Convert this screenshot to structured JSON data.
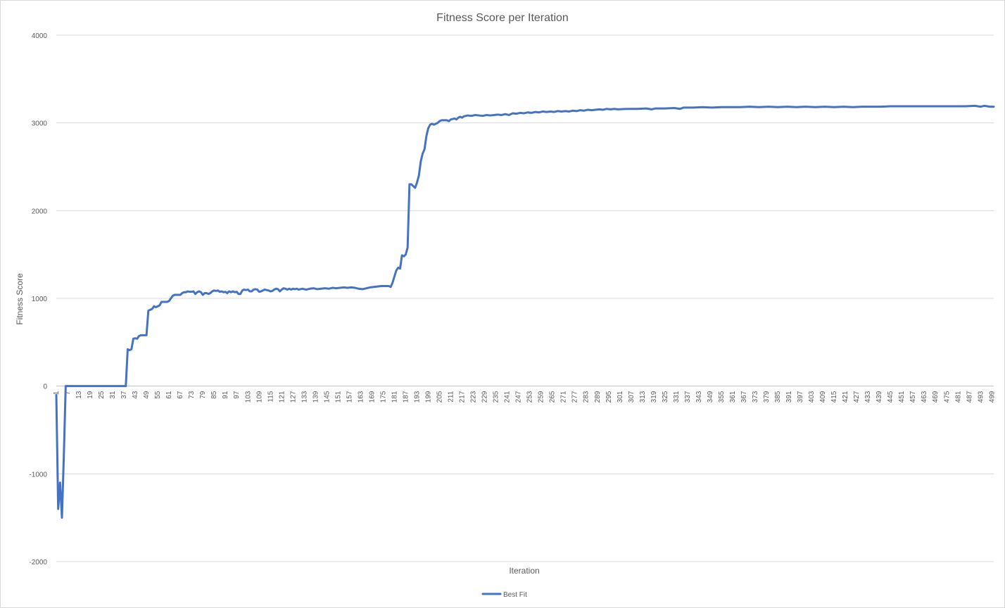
{
  "chart_data": {
    "type": "line",
    "title": "Fitness Score per Iteration",
    "xlabel": "Iteration",
    "ylabel": "Fitness Score",
    "ylim": [
      -2000,
      4000
    ],
    "yticks": [
      -2000,
      -1000,
      0,
      1000,
      2000,
      3000,
      4000
    ],
    "xlim": [
      1,
      500
    ],
    "xtick_start": 1,
    "xtick_step": 6,
    "grid": "horizontal",
    "legend_position": "bottom",
    "line_color": "#4472c4",
    "series": [
      {
        "name": "Best Fit",
        "color": "#4472c4",
        "points": [
          [
            1,
            -100
          ],
          [
            2,
            -1400
          ],
          [
            3,
            -1100
          ],
          [
            4,
            -1500
          ],
          [
            5,
            -800
          ],
          [
            6,
            0
          ],
          [
            7,
            0
          ],
          [
            10,
            0
          ],
          [
            20,
            0
          ],
          [
            30,
            0
          ],
          [
            38,
            0
          ],
          [
            39,
            420
          ],
          [
            40,
            410
          ],
          [
            41,
            420
          ],
          [
            42,
            540
          ],
          [
            43,
            545
          ],
          [
            44,
            540
          ],
          [
            45,
            570
          ],
          [
            46,
            580
          ],
          [
            48,
            580
          ],
          [
            49,
            580
          ],
          [
            50,
            860
          ],
          [
            51,
            870
          ],
          [
            52,
            880
          ],
          [
            53,
            910
          ],
          [
            54,
            900
          ],
          [
            55,
            910
          ],
          [
            56,
            920
          ],
          [
            57,
            960
          ],
          [
            58,
            960
          ],
          [
            60,
            960
          ],
          [
            61,
            970
          ],
          [
            62,
            1000
          ],
          [
            63,
            1030
          ],
          [
            64,
            1040
          ],
          [
            65,
            1040
          ],
          [
            66,
            1040
          ],
          [
            67,
            1040
          ],
          [
            68,
            1060
          ],
          [
            69,
            1070
          ],
          [
            70,
            1070
          ],
          [
            71,
            1080
          ],
          [
            72,
            1075
          ],
          [
            73,
            1075
          ],
          [
            74,
            1080
          ],
          [
            75,
            1050
          ],
          [
            76,
            1070
          ],
          [
            77,
            1080
          ],
          [
            78,
            1070
          ],
          [
            79,
            1040
          ],
          [
            80,
            1060
          ],
          [
            81,
            1060
          ],
          [
            82,
            1050
          ],
          [
            83,
            1060
          ],
          [
            84,
            1080
          ],
          [
            85,
            1090
          ],
          [
            86,
            1085
          ],
          [
            87,
            1090
          ],
          [
            88,
            1075
          ],
          [
            89,
            1080
          ],
          [
            90,
            1070
          ],
          [
            91,
            1075
          ],
          [
            92,
            1060
          ],
          [
            93,
            1080
          ],
          [
            94,
            1070
          ],
          [
            95,
            1080
          ],
          [
            96,
            1070
          ],
          [
            97,
            1075
          ],
          [
            98,
            1050
          ],
          [
            99,
            1050
          ],
          [
            100,
            1090
          ],
          [
            101,
            1100
          ],
          [
            102,
            1095
          ],
          [
            103,
            1100
          ],
          [
            104,
            1080
          ],
          [
            105,
            1080
          ],
          [
            106,
            1100
          ],
          [
            107,
            1105
          ],
          [
            108,
            1100
          ],
          [
            109,
            1075
          ],
          [
            110,
            1080
          ],
          [
            111,
            1090
          ],
          [
            112,
            1100
          ],
          [
            113,
            1095
          ],
          [
            114,
            1090
          ],
          [
            115,
            1080
          ],
          [
            116,
            1085
          ],
          [
            117,
            1100
          ],
          [
            118,
            1110
          ],
          [
            119,
            1105
          ],
          [
            120,
            1080
          ],
          [
            121,
            1100
          ],
          [
            122,
            1115
          ],
          [
            123,
            1110
          ],
          [
            124,
            1100
          ],
          [
            125,
            1110
          ],
          [
            126,
            1100
          ],
          [
            127,
            1110
          ],
          [
            128,
            1105
          ],
          [
            129,
            1110
          ],
          [
            130,
            1100
          ],
          [
            132,
            1110
          ],
          [
            134,
            1100
          ],
          [
            136,
            1110
          ],
          [
            138,
            1115
          ],
          [
            140,
            1105
          ],
          [
            142,
            1110
          ],
          [
            144,
            1115
          ],
          [
            146,
            1110
          ],
          [
            148,
            1120
          ],
          [
            150,
            1115
          ],
          [
            152,
            1120
          ],
          [
            154,
            1125
          ],
          [
            156,
            1120
          ],
          [
            158,
            1125
          ],
          [
            160,
            1120
          ],
          [
            162,
            1110
          ],
          [
            164,
            1105
          ],
          [
            166,
            1115
          ],
          [
            168,
            1125
          ],
          [
            170,
            1130
          ],
          [
            172,
            1135
          ],
          [
            174,
            1140
          ],
          [
            176,
            1140
          ],
          [
            178,
            1140
          ],
          [
            179,
            1130
          ],
          [
            180,
            1180
          ],
          [
            181,
            1250
          ],
          [
            182,
            1320
          ],
          [
            183,
            1350
          ],
          [
            184,
            1340
          ],
          [
            185,
            1490
          ],
          [
            186,
            1480
          ],
          [
            187,
            1500
          ],
          [
            188,
            1580
          ],
          [
            189,
            2300
          ],
          [
            190,
            2300
          ],
          [
            191,
            2280
          ],
          [
            192,
            2260
          ],
          [
            193,
            2320
          ],
          [
            194,
            2400
          ],
          [
            195,
            2560
          ],
          [
            196,
            2650
          ],
          [
            197,
            2700
          ],
          [
            198,
            2850
          ],
          [
            199,
            2940
          ],
          [
            200,
            2980
          ],
          [
            201,
            2990
          ],
          [
            202,
            2980
          ],
          [
            203,
            2990
          ],
          [
            204,
            3000
          ],
          [
            205,
            3020
          ],
          [
            206,
            3030
          ],
          [
            207,
            3030
          ],
          [
            208,
            3030
          ],
          [
            209,
            3030
          ],
          [
            210,
            3020
          ],
          [
            211,
            3040
          ],
          [
            212,
            3045
          ],
          [
            213,
            3050
          ],
          [
            214,
            3040
          ],
          [
            215,
            3060
          ],
          [
            216,
            3070
          ],
          [
            217,
            3060
          ],
          [
            218,
            3075
          ],
          [
            219,
            3080
          ],
          [
            220,
            3085
          ],
          [
            222,
            3080
          ],
          [
            224,
            3090
          ],
          [
            226,
            3085
          ],
          [
            228,
            3080
          ],
          [
            230,
            3090
          ],
          [
            232,
            3085
          ],
          [
            234,
            3090
          ],
          [
            236,
            3095
          ],
          [
            238,
            3090
          ],
          [
            240,
            3100
          ],
          [
            242,
            3090
          ],
          [
            244,
            3110
          ],
          [
            246,
            3105
          ],
          [
            248,
            3115
          ],
          [
            250,
            3110
          ],
          [
            252,
            3120
          ],
          [
            254,
            3115
          ],
          [
            256,
            3125
          ],
          [
            258,
            3120
          ],
          [
            260,
            3130
          ],
          [
            262,
            3125
          ],
          [
            264,
            3130
          ],
          [
            266,
            3125
          ],
          [
            268,
            3135
          ],
          [
            270,
            3130
          ],
          [
            272,
            3135
          ],
          [
            274,
            3130
          ],
          [
            276,
            3140
          ],
          [
            278,
            3135
          ],
          [
            280,
            3145
          ],
          [
            282,
            3140
          ],
          [
            284,
            3150
          ],
          [
            286,
            3145
          ],
          [
            288,
            3150
          ],
          [
            290,
            3155
          ],
          [
            292,
            3150
          ],
          [
            294,
            3160
          ],
          [
            296,
            3155
          ],
          [
            298,
            3160
          ],
          [
            300,
            3155
          ],
          [
            305,
            3160
          ],
          [
            310,
            3160
          ],
          [
            315,
            3165
          ],
          [
            318,
            3155
          ],
          [
            320,
            3165
          ],
          [
            325,
            3165
          ],
          [
            330,
            3170
          ],
          [
            333,
            3160
          ],
          [
            335,
            3175
          ],
          [
            340,
            3175
          ],
          [
            345,
            3180
          ],
          [
            350,
            3175
          ],
          [
            355,
            3180
          ],
          [
            360,
            3180
          ],
          [
            365,
            3180
          ],
          [
            370,
            3185
          ],
          [
            375,
            3180
          ],
          [
            380,
            3185
          ],
          [
            385,
            3180
          ],
          [
            390,
            3185
          ],
          [
            395,
            3180
          ],
          [
            400,
            3185
          ],
          [
            405,
            3180
          ],
          [
            410,
            3185
          ],
          [
            415,
            3180
          ],
          [
            420,
            3185
          ],
          [
            425,
            3180
          ],
          [
            430,
            3185
          ],
          [
            435,
            3185
          ],
          [
            440,
            3185
          ],
          [
            445,
            3190
          ],
          [
            450,
            3190
          ],
          [
            455,
            3190
          ],
          [
            460,
            3190
          ],
          [
            465,
            3190
          ],
          [
            470,
            3190
          ],
          [
            475,
            3190
          ],
          [
            480,
            3190
          ],
          [
            485,
            3190
          ],
          [
            490,
            3195
          ],
          [
            493,
            3185
          ],
          [
            495,
            3195
          ],
          [
            498,
            3185
          ],
          [
            500,
            3185
          ]
        ]
      }
    ]
  }
}
